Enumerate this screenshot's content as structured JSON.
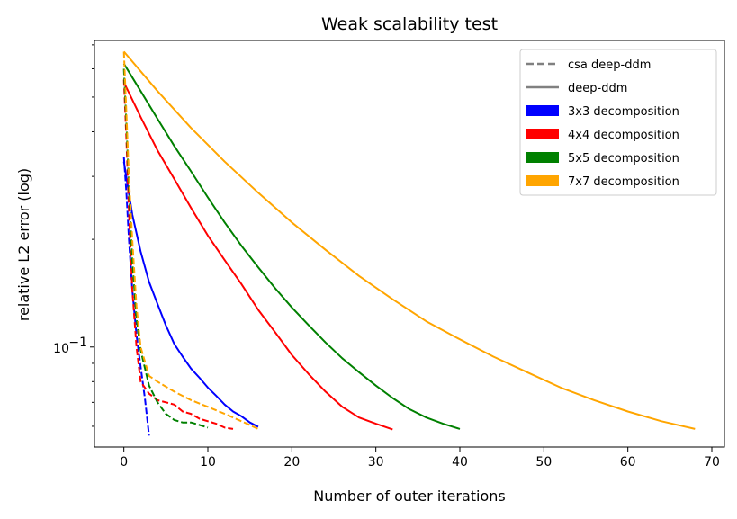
{
  "chart_data": {
    "type": "line",
    "title": "Weak scalability test",
    "xlabel": "Number of outer iterations",
    "ylabel": "relative L2 error (log)",
    "xlim": [
      -3.5,
      71.5
    ],
    "ylim": [
      0.0525,
      0.72
    ],
    "yscale": "log",
    "grid": false,
    "legend_position": "upper right",
    "x_ticks": [
      0,
      10,
      20,
      30,
      40,
      50,
      60,
      70
    ],
    "x_tick_labels": [
      "0",
      "10",
      "20",
      "30",
      "40",
      "50",
      "60",
      "70"
    ],
    "y_major_ticks": [
      {
        "value": 0.1,
        "label_base": "10",
        "label_exp": "−1"
      }
    ],
    "y_minor_ticks": [
      0.06,
      0.07,
      0.08,
      0.09,
      0.2,
      0.3,
      0.4,
      0.5,
      0.6,
      0.7
    ],
    "legend": [
      {
        "label": "csa deep-ddm",
        "kind": "dashed-line",
        "color": "#808080"
      },
      {
        "label": "deep-ddm",
        "kind": "solid-line",
        "color": "#808080"
      },
      {
        "label": "3x3 decomposition",
        "kind": "patch",
        "color": "#0000ff"
      },
      {
        "label": "4x4 decomposition",
        "kind": "patch",
        "color": "#ff0000"
      },
      {
        "label": "5x5 decomposition",
        "kind": "patch",
        "color": "#008000"
      },
      {
        "label": "7x7 decomposition",
        "kind": "patch",
        "color": "#ffa500"
      }
    ],
    "series": [
      {
        "decomposition": "3x3",
        "method": "deep-ddm",
        "color": "#0000ff",
        "dash": false,
        "x": [
          0,
          1,
          2,
          3,
          4,
          5,
          6,
          7,
          8,
          9,
          10,
          11,
          12,
          13,
          14,
          15,
          16
        ],
        "y": [
          0.33,
          0.235,
          0.185,
          0.152,
          0.132,
          0.115,
          0.102,
          0.094,
          0.087,
          0.082,
          0.077,
          0.073,
          0.069,
          0.066,
          0.064,
          0.0615,
          0.0598
        ]
      },
      {
        "decomposition": "3x3",
        "method": "csa deep-ddm",
        "color": "#0000ff",
        "dash": true,
        "x": [
          0,
          0.3,
          0.6,
          1,
          1.5,
          2,
          2.5,
          3
        ],
        "y": [
          0.34,
          0.27,
          0.2,
          0.145,
          0.108,
          0.088,
          0.072,
          0.0565
        ]
      },
      {
        "decomposition": "4x4",
        "method": "deep-ddm",
        "color": "#ff0000",
        "dash": false,
        "x": [
          0,
          2,
          4,
          6,
          8,
          10,
          12,
          14,
          16,
          18,
          20,
          22,
          24,
          26,
          28,
          30,
          32
        ],
        "y": [
          0.55,
          0.44,
          0.355,
          0.295,
          0.245,
          0.205,
          0.175,
          0.15,
          0.127,
          0.11,
          0.095,
          0.084,
          0.075,
          0.068,
          0.0635,
          0.061,
          0.0588
        ]
      },
      {
        "decomposition": "4x4",
        "method": "csa deep-ddm",
        "color": "#ff0000",
        "dash": true,
        "x": [
          0,
          0.3,
          0.6,
          1,
          1.5,
          2,
          3,
          4,
          5,
          6,
          7,
          8,
          9,
          10,
          11,
          12,
          13
        ],
        "y": [
          0.56,
          0.38,
          0.24,
          0.145,
          0.1,
          0.08,
          0.074,
          0.071,
          0.07,
          0.069,
          0.066,
          0.065,
          0.063,
          0.062,
          0.061,
          0.0595,
          0.059
        ]
      },
      {
        "decomposition": "5x5",
        "method": "deep-ddm",
        "color": "#008000",
        "dash": false,
        "x": [
          0,
          2,
          4,
          6,
          8,
          10,
          12,
          14,
          16,
          18,
          20,
          22,
          24,
          26,
          28,
          30,
          32,
          34,
          36,
          38,
          40
        ],
        "y": [
          0.62,
          0.52,
          0.435,
          0.365,
          0.31,
          0.262,
          0.223,
          0.192,
          0.167,
          0.146,
          0.129,
          0.115,
          0.103,
          0.093,
          0.085,
          0.078,
          0.072,
          0.067,
          0.0635,
          0.061,
          0.059
        ]
      },
      {
        "decomposition": "5x5",
        "method": "csa deep-ddm",
        "color": "#008000",
        "dash": true,
        "x": [
          0,
          0.3,
          0.6,
          1,
          1.5,
          2,
          3,
          4,
          5,
          6,
          7,
          8,
          9,
          10
        ],
        "y": [
          0.6,
          0.42,
          0.28,
          0.175,
          0.12,
          0.098,
          0.078,
          0.07,
          0.065,
          0.0625,
          0.0615,
          0.0615,
          0.0605,
          0.0595
        ]
      },
      {
        "decomposition": "7x7",
        "method": "deep-ddm",
        "color": "#ffa500",
        "dash": false,
        "x": [
          0,
          4,
          8,
          12,
          16,
          20,
          24,
          28,
          32,
          36,
          40,
          44,
          48,
          52,
          56,
          60,
          64,
          68
        ],
        "y": [
          0.67,
          0.52,
          0.41,
          0.33,
          0.27,
          0.223,
          0.187,
          0.158,
          0.136,
          0.118,
          0.105,
          0.094,
          0.085,
          0.077,
          0.071,
          0.066,
          0.062,
          0.059
        ]
      },
      {
        "decomposition": "7x7",
        "method": "csa deep-ddm",
        "color": "#ffa500",
        "dash": true,
        "x": [
          0,
          0.3,
          0.6,
          1,
          1.5,
          2,
          3,
          4,
          6,
          8,
          10,
          12,
          14,
          16
        ],
        "y": [
          0.67,
          0.45,
          0.3,
          0.2,
          0.13,
          0.1,
          0.083,
          0.08,
          0.075,
          0.071,
          0.068,
          0.065,
          0.062,
          0.059
        ]
      }
    ]
  }
}
